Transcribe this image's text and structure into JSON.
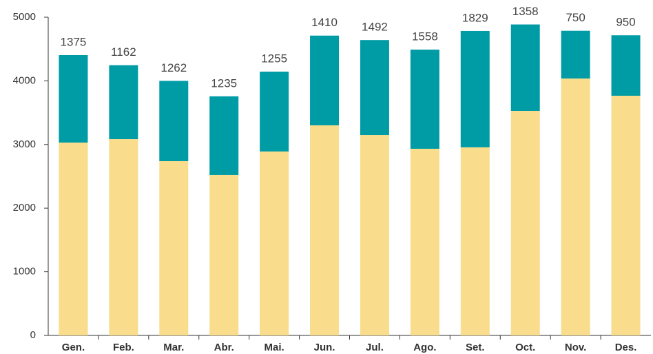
{
  "chart_data": {
    "type": "bar",
    "stacked": true,
    "categories": [
      "Gen.",
      "Feb.",
      "Mar.",
      "Abr.",
      "Mai.",
      "Jun.",
      "Jul.",
      "Ago.",
      "Set.",
      "Oct.",
      "Nov.",
      "Des."
    ],
    "series": [
      {
        "color": "#f9dd8c",
        "values": [
          3030,
          3084,
          2738,
          2522,
          2890,
          3301,
          3149,
          2933,
          2955,
          3528,
          4037,
          3766
        ]
      },
      {
        "color": "#009ca6",
        "values": [
          1375,
          1162,
          1262,
          1235,
          1255,
          1410,
          1492,
          1558,
          1829,
          1358,
          750,
          950
        ],
        "show_labels": true
      }
    ],
    "ylim": [
      0,
      5000
    ],
    "yticks": [
      0,
      1000,
      2000,
      3000,
      4000,
      5000
    ],
    "grid": false
  }
}
